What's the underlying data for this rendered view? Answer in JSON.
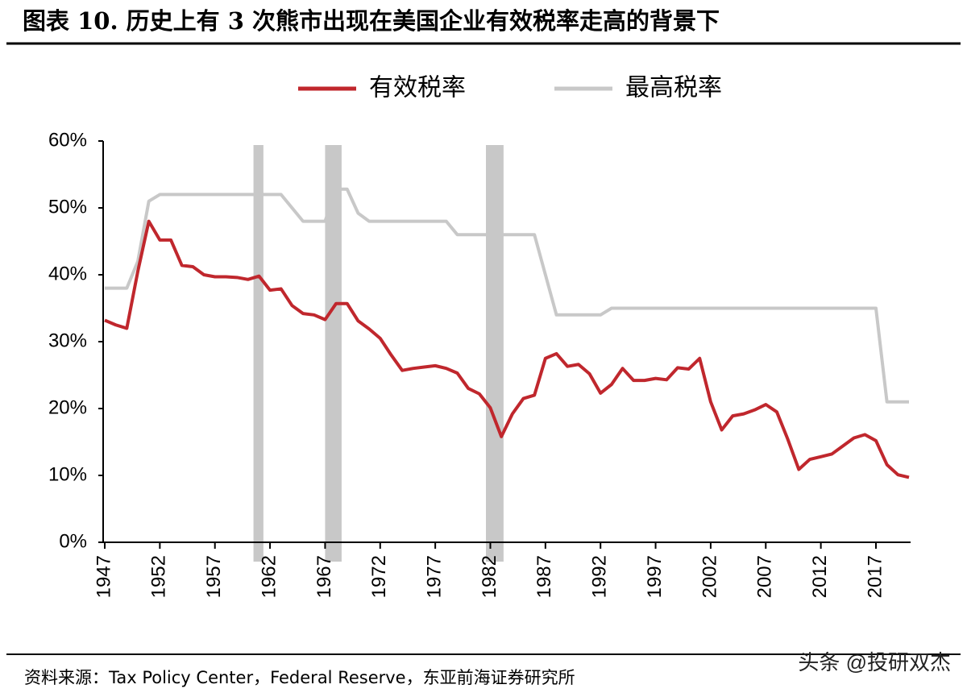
{
  "chart_data": {
    "type": "line",
    "title": "图表 10. 历史上有 3 次熊市出现在美国企业有效税率走高的背景下",
    "source": "资料来源：Tax Policy Center，Federal Reserve，东亚前海证券研究所",
    "watermark": "头条 @投研双杰",
    "x": [
      1947,
      1948,
      1949,
      1950,
      1951,
      1952,
      1953,
      1954,
      1955,
      1956,
      1957,
      1958,
      1959,
      1960,
      1961,
      1962,
      1963,
      1964,
      1965,
      1966,
      1967,
      1968,
      1969,
      1970,
      1971,
      1972,
      1973,
      1974,
      1975,
      1976,
      1977,
      1978,
      1979,
      1980,
      1981,
      1982,
      1983,
      1984,
      1985,
      1986,
      1987,
      1988,
      1989,
      1990,
      1991,
      1992,
      1993,
      1994,
      1995,
      1996,
      1997,
      1998,
      1999,
      2000,
      2001,
      2002,
      2003,
      2004,
      2005,
      2006,
      2007,
      2008,
      2009,
      2010,
      2011,
      2012,
      2013,
      2014,
      2015,
      2016,
      2017,
      2018,
      2019,
      2020
    ],
    "series": [
      {
        "name": "有效税率",
        "color": "#c0272d",
        "values": [
          33.2,
          32.5,
          32.0,
          40.5,
          48.0,
          45.2,
          45.2,
          41.4,
          41.2,
          40.0,
          39.7,
          39.7,
          39.6,
          39.3,
          39.8,
          37.7,
          37.9,
          35.4,
          34.2,
          34.0,
          33.3,
          35.7,
          35.7,
          33.1,
          31.9,
          30.5,
          28.0,
          25.7,
          26.0,
          26.2,
          26.4,
          26.0,
          25.3,
          23.0,
          22.2,
          20.1,
          15.8,
          19.2,
          21.5,
          22.0,
          27.5,
          28.2,
          26.3,
          26.6,
          25.2,
          22.3,
          23.6,
          26.0,
          24.2,
          24.2,
          24.5,
          24.3,
          26.1,
          25.9,
          27.5,
          21.0,
          16.8,
          18.9,
          19.2,
          19.8,
          20.6,
          19.5,
          15.4,
          10.9,
          12.4,
          12.8,
          13.2,
          14.4,
          15.6,
          16.1,
          15.2,
          11.6,
          10.1,
          9.7
        ]
      },
      {
        "name": "最高税率",
        "color": "#c8c8c8",
        "values": [
          38,
          38,
          38,
          42,
          51,
          52,
          52,
          52,
          52,
          52,
          52,
          52,
          52,
          52,
          52,
          52,
          52,
          50,
          48,
          48,
          48,
          52.8,
          52.8,
          49.2,
          48,
          48,
          48,
          48,
          48,
          48,
          48,
          48,
          46,
          46,
          46,
          46,
          46,
          46,
          46,
          46,
          40,
          34,
          34,
          34,
          34,
          34,
          35,
          35,
          35,
          35,
          35,
          35,
          35,
          35,
          35,
          35,
          35,
          35,
          35,
          35,
          35,
          35,
          35,
          35,
          35,
          35,
          35,
          35,
          35,
          35,
          35,
          21,
          21,
          21
        ]
      }
    ],
    "shaded_periods": [
      [
        1960.5,
        1961.4
      ],
      [
        1967.0,
        1968.5
      ],
      [
        1981.6,
        1983.2
      ]
    ],
    "shade_color": "#c8c8c8",
    "xlim": [
      1947,
      2020
    ],
    "xticks": [
      1947,
      1952,
      1957,
      1962,
      1967,
      1972,
      1977,
      1982,
      1987,
      1992,
      1997,
      2002,
      2007,
      2012,
      2017
    ],
    "ylim": [
      0,
      60
    ],
    "yticks": [
      {
        "value": 0,
        "label": "0%"
      },
      {
        "value": 10,
        "label": "10%"
      },
      {
        "value": 20,
        "label": "20%"
      },
      {
        "value": 30,
        "label": "30%"
      },
      {
        "value": 40,
        "label": "40%"
      },
      {
        "value": 50,
        "label": "50%"
      },
      {
        "value": 60,
        "label": "60%"
      }
    ],
    "legend": "top"
  }
}
